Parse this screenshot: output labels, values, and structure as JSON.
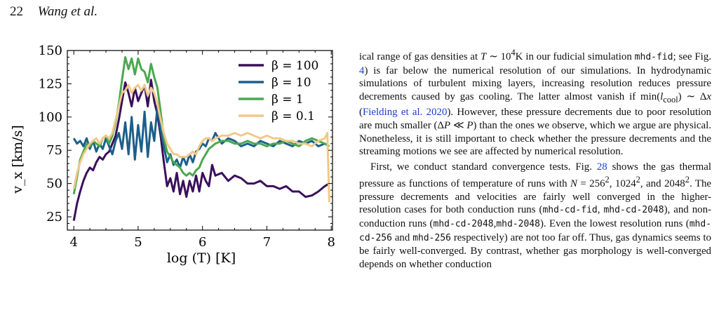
{
  "header": {
    "page_number": "22",
    "authors": "Wang et al."
  },
  "chart_data": {
    "type": "line",
    "xlabel": "log (T) [K]",
    "ylabel": "v_x [km/s]",
    "xlim": [
      3.9,
      8.02
    ],
    "ylim": [
      15,
      150
    ],
    "xticks": [
      4,
      5,
      6,
      7,
      8
    ],
    "yticks": [
      25,
      50,
      75,
      100,
      125,
      150
    ],
    "legend_position": "top-right",
    "series": [
      {
        "name": "β = 100",
        "color": "#3a0f5c",
        "x": [
          4.0,
          4.05,
          4.1,
          4.15,
          4.2,
          4.25,
          4.3,
          4.35,
          4.4,
          4.45,
          4.5,
          4.55,
          4.6,
          4.65,
          4.7,
          4.75,
          4.8,
          4.85,
          4.9,
          4.95,
          5.0,
          5.05,
          5.1,
          5.15,
          5.2,
          5.25,
          5.3,
          5.35,
          5.4,
          5.45,
          5.5,
          5.55,
          5.6,
          5.65,
          5.7,
          5.75,
          5.8,
          5.85,
          5.9,
          5.95,
          6.0,
          6.05,
          6.1,
          6.15,
          6.2,
          6.3,
          6.4,
          6.5,
          6.6,
          6.7,
          6.8,
          6.9,
          7.0,
          7.1,
          7.2,
          7.3,
          7.4,
          7.5,
          7.6,
          7.7,
          7.8,
          7.9,
          7.97
        ],
        "y": [
          22,
          35,
          44,
          52,
          58,
          62,
          60,
          66,
          70,
          68,
          72,
          74,
          80,
          86,
          98,
          112,
          126,
          118,
          108,
          122,
          112,
          118,
          124,
          108,
          128,
          112,
          102,
          86,
          66,
          48,
          54,
          44,
          58,
          42,
          52,
          40,
          52,
          44,
          56,
          44,
          58,
          52,
          48,
          64,
          56,
          58,
          52,
          56,
          54,
          50,
          50,
          52,
          48,
          48,
          46,
          48,
          44,
          44,
          40,
          41,
          44,
          48,
          50
        ]
      },
      {
        "name": "β = 10",
        "color": "#1d5f8a",
        "x": [
          4.0,
          4.05,
          4.1,
          4.15,
          4.2,
          4.25,
          4.3,
          4.35,
          4.4,
          4.45,
          4.5,
          4.55,
          4.6,
          4.65,
          4.7,
          4.75,
          4.8,
          4.85,
          4.9,
          4.95,
          5.0,
          5.05,
          5.1,
          5.15,
          5.2,
          5.25,
          5.3,
          5.35,
          5.4,
          5.45,
          5.5,
          5.55,
          5.6,
          5.65,
          5.7,
          5.75,
          5.8,
          5.85,
          5.9,
          5.95,
          6.0,
          6.05,
          6.1,
          6.15,
          6.2,
          6.3,
          6.4,
          6.5,
          6.6,
          6.7,
          6.8,
          6.9,
          7.0,
          7.1,
          7.2,
          7.3,
          7.4,
          7.5,
          7.6,
          7.7,
          7.8,
          7.9,
          7.97
        ],
        "y": [
          84,
          80,
          82,
          78,
          84,
          76,
          82,
          74,
          80,
          76,
          84,
          78,
          72,
          82,
          88,
          76,
          96,
          72,
          100,
          68,
          94,
          74,
          104,
          70,
          96,
          82,
          108,
          90,
          78,
          66,
          72,
          64,
          68,
          62,
          70,
          64,
          72,
          66,
          74,
          76,
          80,
          78,
          84,
          82,
          88,
          80,
          84,
          82,
          78,
          80,
          78,
          82,
          80,
          78,
          82,
          80,
          78,
          82,
          80,
          82,
          78,
          80,
          78
        ]
      },
      {
        "name": "β = 1",
        "color": "#4aa84f",
        "x": [
          4.0,
          4.05,
          4.1,
          4.15,
          4.2,
          4.25,
          4.3,
          4.35,
          4.4,
          4.45,
          4.5,
          4.55,
          4.6,
          4.65,
          4.7,
          4.75,
          4.8,
          4.85,
          4.9,
          4.95,
          5.0,
          5.05,
          5.1,
          5.15,
          5.2,
          5.25,
          5.3,
          5.35,
          5.4,
          5.45,
          5.5,
          5.55,
          5.6,
          5.65,
          5.7,
          5.75,
          5.8,
          5.85,
          5.9,
          5.95,
          6.0,
          6.05,
          6.1,
          6.15,
          6.2,
          6.3,
          6.4,
          6.5,
          6.6,
          6.7,
          6.8,
          6.9,
          7.0,
          7.1,
          7.2,
          7.3,
          7.4,
          7.5,
          7.6,
          7.7,
          7.8,
          7.9,
          7.97
        ],
        "y": [
          42,
          55,
          68,
          74,
          80,
          78,
          82,
          80,
          78,
          84,
          86,
          80,
          86,
          96,
          110,
          128,
          145,
          136,
          144,
          132,
          144,
          136,
          134,
          126,
          140,
          130,
          122,
          104,
          84,
          74,
          70,
          66,
          64,
          62,
          58,
          56,
          58,
          56,
          60,
          62,
          68,
          72,
          76,
          78,
          80,
          82,
          82,
          80,
          80,
          82,
          80,
          80,
          78,
          80,
          80,
          82,
          80,
          78,
          82,
          84,
          82,
          80,
          78
        ]
      },
      {
        "name": "β = 0.1",
        "color": "#f0c988",
        "x": [
          4.0,
          4.05,
          4.1,
          4.15,
          4.2,
          4.25,
          4.3,
          4.35,
          4.4,
          4.45,
          4.5,
          4.55,
          4.6,
          4.65,
          4.7,
          4.75,
          4.8,
          4.85,
          4.9,
          4.95,
          5.0,
          5.05,
          5.1,
          5.15,
          5.2,
          5.25,
          5.3,
          5.35,
          5.4,
          5.45,
          5.5,
          5.55,
          5.6,
          5.65,
          5.7,
          5.75,
          5.8,
          5.85,
          5.9,
          5.95,
          6.0,
          6.05,
          6.1,
          6.15,
          6.2,
          6.3,
          6.4,
          6.5,
          6.6,
          6.7,
          6.8,
          6.9,
          7.0,
          7.1,
          7.2,
          7.3,
          7.4,
          7.5,
          7.6,
          7.7,
          7.8,
          7.9,
          7.94,
          7.97
        ],
        "y": [
          46,
          58,
          66,
          72,
          76,
          80,
          82,
          84,
          80,
          84,
          86,
          84,
          88,
          98,
          108,
          118,
          120,
          124,
          118,
          122,
          124,
          120,
          124,
          116,
          122,
          118,
          110,
          98,
          88,
          80,
          76,
          72,
          72,
          70,
          70,
          70,
          72,
          74,
          72,
          78,
          82,
          84,
          84,
          82,
          84,
          86,
          86,
          88,
          86,
          88,
          86,
          84,
          86,
          84,
          84,
          82,
          82,
          80,
          80,
          78,
          82,
          84,
          88,
          36
        ]
      }
    ]
  },
  "body": {
    "p1_a": "ical range of gas densities at ",
    "p1_b": "T",
    "p1_c": " ∼ 10",
    "p1_d": "4",
    "p1_e": "K in our fudicial simulation ",
    "p1_code1": "mhd-fid",
    "p1_f": "; see Fig. ",
    "p1_ref1": "4",
    "p1_g": ") is far below the numerical resolution of our simulations. In hydrodynamic simulations of turbulent mixing layers, increasing resolution reduces pressure decrements caused by gas cooling. The latter almost vanish if min(",
    "p1_h": "l",
    "p1_i": "cool",
    "p1_j": ") ∼ Δ",
    "p1_k": "x",
    "p1_l": " (",
    "p1_cite": "Fielding et al. 2020",
    "p1_m": "). However, these pressure decrements due to poor resolution are much smaller (Δ",
    "p1_n": "P",
    "p1_o": " ≪ ",
    "p1_p": "P",
    "p1_q": ") than the ones we observe, which we argue are physical. Nonetheless, it is still important to check whether the pressure decrements and the streaming motions we see are affected by numerical resolution.",
    "p2_a": "First, we conduct standard convergence tests. Fig. ",
    "p2_ref": "28",
    "p2_b": " shows the gas thermal pressure as functions of temperature of runs with ",
    "p2_c": "N",
    "p2_d": " = 256",
    "p2_e": "2",
    "p2_f": ", 1024",
    "p2_g": "2",
    "p2_h": ", and 2048",
    "p2_i": "2",
    "p2_j": ". The pressure decrements and velocities are fairly well converged in the higher-resolution cases for both conduction runs (",
    "p2_code1": "mhd-cd-fid",
    "p2_k": ", ",
    "p2_code2": "mhd-cd-2048",
    "p2_l": "), and non-conduction runs (",
    "p2_code3": "mhd-cd-2048",
    "p2_m": ",",
    "p2_code4": "mhd-2048",
    "p2_n": "). Even the lowest resolution runs (",
    "p2_code5": "mhd-cd-256",
    "p2_o": " and ",
    "p2_code6": "mhd-256",
    "p2_p": " respectively) are not too far off. Thus, gas dynamics seems to be fairly well-converged. By contrast, whether gas morphology is well-converged depends on whether conduction"
  }
}
